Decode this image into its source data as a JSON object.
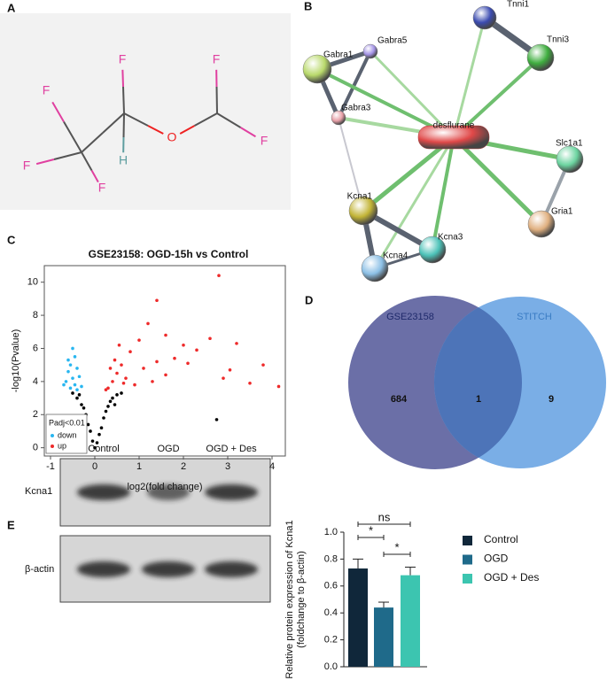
{
  "panel_labels": [
    "A",
    "B",
    "C",
    "D",
    "E"
  ],
  "molecule": {
    "atoms": [
      "F",
      "F",
      "F",
      "F",
      "H",
      "O",
      "F",
      "F"
    ]
  },
  "network": {
    "nodes": [
      "Tnni1",
      "Tnni3",
      "Gabra1",
      "Gabra5",
      "Gabra3",
      "desflurane",
      "Slc1a1",
      "Kcna1",
      "Kcna3",
      "Kcna4",
      "Gria1"
    ]
  },
  "blot": {
    "columns": [
      "Control",
      "OGD",
      "OGD + Des"
    ],
    "rows": [
      "Kcna1",
      "β-actin"
    ]
  },
  "chart_data": [
    {
      "type": "scatter",
      "title": "GSE23158: OGD-15h vs Control",
      "xlabel": "log2(fold change)",
      "ylabel": "-log10(Pvalue)",
      "xlim": [
        -1.14,
        4.3
      ],
      "ylim": [
        -0.5,
        11
      ],
      "xticks": [
        -1,
        0,
        1,
        2,
        3,
        4
      ],
      "yticks": [
        0,
        2,
        4,
        6,
        8,
        10
      ],
      "legend_title": "Padj<0.01",
      "legend": "lower left",
      "series": [
        {
          "color": "#000000",
          "x": [
            0,
            0.1,
            -0.1,
            0.2,
            -0.2,
            0.3,
            -0.3,
            0.4,
            -0.4,
            0.15,
            -0.15,
            0.25,
            -0.25,
            0.05,
            -0.05,
            0.35,
            -0.35,
            0.5,
            2.75,
            -0.5,
            0.45,
            0.6
          ],
          "values": [
            0,
            0.8,
            1,
            1.8,
            2,
            2.5,
            2.6,
            3,
            3,
            1.2,
            1.4,
            2.2,
            2.4,
            0.3,
            0.4,
            2.8,
            3.2,
            3.2,
            1.7,
            3.3,
            2.6,
            3.3
          ]
        },
        {
          "name": "down",
          "color": "#29b6f0",
          "x": [
            -0.5,
            -0.45,
            -0.55,
            -0.6,
            -0.4,
            -0.5,
            -0.65,
            -0.35,
            -0.45,
            -0.55,
            -0.7,
            -0.3,
            -0.6,
            -0.4
          ],
          "values": [
            6,
            5.5,
            5,
            4.6,
            4.8,
            4.2,
            4,
            4.3,
            3.8,
            3.6,
            3.8,
            3.7,
            5.3,
            3.5
          ]
        },
        {
          "name": "up",
          "color": "#ee2a2a",
          "x": [
            2.8,
            1.4,
            2.6,
            3.2,
            3.8,
            4.15,
            3.5,
            3.05,
            2.9,
            2.3,
            2,
            1.6,
            1.2,
            1,
            0.8,
            0.6,
            0.5,
            0.4,
            0.3,
            0.7,
            1.1,
            1.4,
            1.8,
            0.9,
            1.3,
            0.55,
            0.45,
            0.35,
            1.6,
            2.1,
            0.65,
            0.25
          ],
          "values": [
            10.4,
            8.9,
            6.6,
            6.3,
            5,
            3.7,
            3.9,
            4.7,
            4.2,
            5.9,
            6.2,
            6.8,
            7.5,
            6.5,
            5.8,
            5,
            4.5,
            4,
            3.6,
            4.2,
            4.8,
            5.2,
            5.4,
            3.8,
            4,
            6.2,
            5.3,
            4.8,
            4.4,
            5.1,
            3.9,
            3.5
          ]
        }
      ]
    },
    {
      "type": "venn",
      "sets": [
        {
          "name": "GSE23158",
          "color": "#6b6fa7",
          "label_color": "#1f2a6b",
          "value": 684
        },
        {
          "name": "STITCH",
          "color": "#7aaee6",
          "label_color": "#3a7cc4",
          "value": 9
        }
      ],
      "intersection": 1,
      "intersection_color": "#4d74b8"
    },
    {
      "type": "bar",
      "ylabel": [
        "Relative protein expression of Kcna1",
        "(foldchange to β-actin)"
      ],
      "categories": [
        "Control",
        "OGD",
        "OGD + Des"
      ],
      "values": [
        0.73,
        0.44,
        0.68
      ],
      "errors": [
        0.07,
        0.04,
        0.06
      ],
      "colors": [
        "#10273a",
        "#1f6a8a",
        "#3cc5b0"
      ],
      "ylim": [
        0,
        1
      ],
      "yticks": [
        {
          "value": 0,
          "label": "0.0"
        },
        0.2,
        0.4,
        0.6,
        0.8,
        {
          "value": 1,
          "label": "1.0"
        }
      ],
      "legend": "right",
      "annotations": [
        {
          "text": "ns",
          "between": [
            0,
            2
          ]
        },
        {
          "text": "*",
          "between": [
            0,
            1
          ]
        },
        {
          "text": "*",
          "between": [
            1,
            2
          ]
        }
      ]
    }
  ]
}
